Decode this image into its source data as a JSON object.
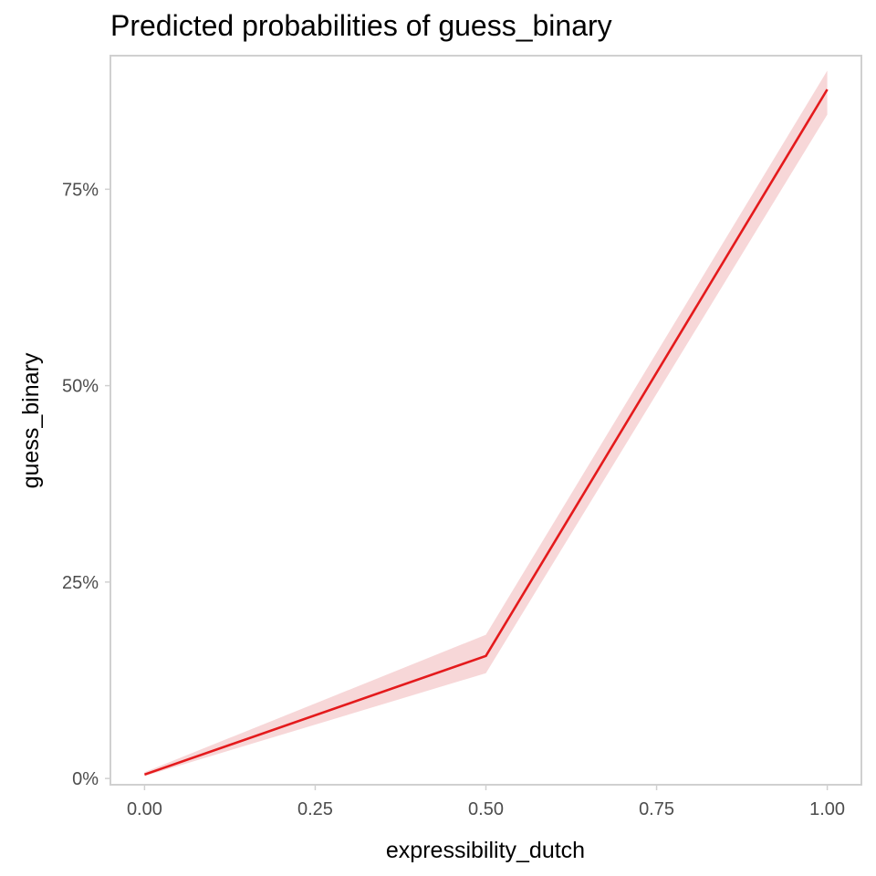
{
  "chart_data": {
    "type": "line",
    "title": "Predicted probabilities of guess_binary",
    "xlabel": "expressibility_dutch",
    "ylabel": "guess_binary",
    "xlim": [
      -0.05,
      1.05
    ],
    "ylim": [
      -0.008,
      0.92
    ],
    "x_ticks": [
      0,
      0.25,
      0.5,
      0.75,
      1
    ],
    "x_tick_labels": [
      "0.00",
      "0.25",
      "0.50",
      "0.75",
      "1.00"
    ],
    "y_ticks": [
      0,
      0.25,
      0.5,
      0.75
    ],
    "y_tick_labels": [
      "0%",
      "25%",
      "50%",
      "75%"
    ],
    "grid": false,
    "legend": "none",
    "series": [
      {
        "x": [
          0,
          0.5,
          1
        ],
        "values": [
          0.005,
          0.156,
          0.877
        ],
        "ci_lower": [
          0.003,
          0.134,
          0.845
        ],
        "ci_upper": [
          0.008,
          0.183,
          0.901
        ]
      }
    ],
    "colors": {
      "line": "#e41a1c",
      "ribbon": "#f7d7d8",
      "panel_border": "#d0d0d0"
    }
  }
}
